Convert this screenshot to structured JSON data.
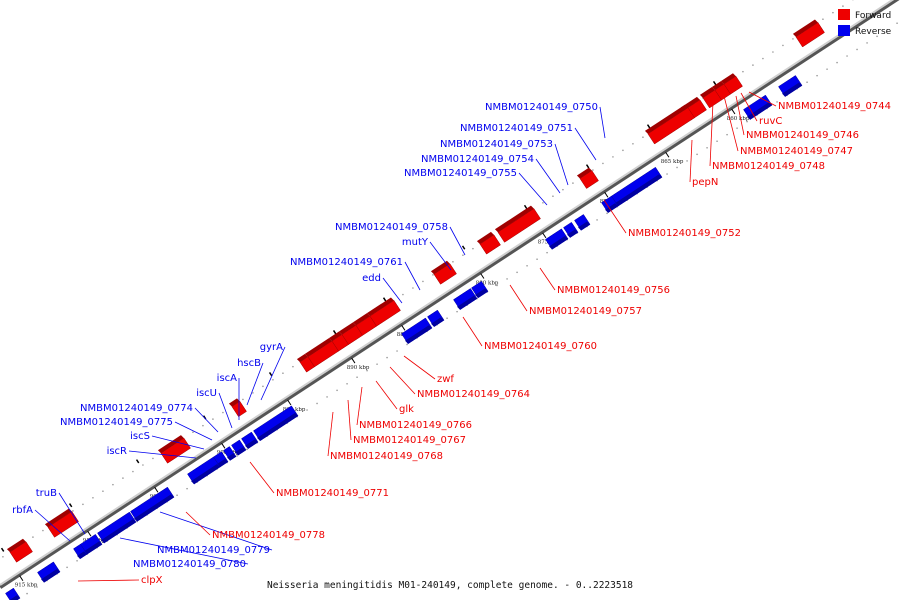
{
  "colors": {
    "forward": "#ee0000",
    "reverse": "#0000ee",
    "backbone": "#888888"
  },
  "legend": {
    "forward_label": "Forward",
    "reverse_label": "Reverse"
  },
  "caption": "Neisseria meningitidis M01-240149, complete genome. - 0..2223518",
  "ticks": [
    "860 kbp",
    "865 kbp",
    "870 kbp",
    "875 kbp",
    "880 kbp",
    "885 kbp",
    "890 kbp",
    "895 kbp",
    "900 kbp",
    "905 kbp",
    "910 kbp",
    "915 kbp"
  ],
  "reverse_labels": [
    "NMBM01240149_0750",
    "NMBM01240149_0751",
    "NMBM01240149_0753",
    "NMBM01240149_0754",
    "NMBM01240149_0755",
    "NMBM01240149_0758",
    "mutY",
    "NMBM01240149_0761",
    "edd",
    "gyrA",
    "hscB",
    "iscA",
    "iscU",
    "NMBM01240149_0774",
    "NMBM01240149_0775",
    "iscS",
    "iscR",
    "truB",
    "rbfA",
    "NMBM01240149_0779",
    "NMBM01240149_0780"
  ],
  "forward_labels": [
    "NMBM01240149_0744",
    "ruvC",
    "NMBM01240149_0746",
    "NMBM01240149_0747",
    "NMBM01240149_0748",
    "pepN",
    "NMBM01240149_0752",
    "NMBM01240149_0756",
    "NMBM01240149_0757",
    "NMBM01240149_0760",
    "zwf",
    "NMBM01240149_0764",
    "glk",
    "NMBM01240149_0766",
    "NMBM01240149_0767",
    "NMBM01240149_0768",
    "NMBM01240149_0771",
    "NMBM01240149_0778",
    "clpX"
  ]
}
